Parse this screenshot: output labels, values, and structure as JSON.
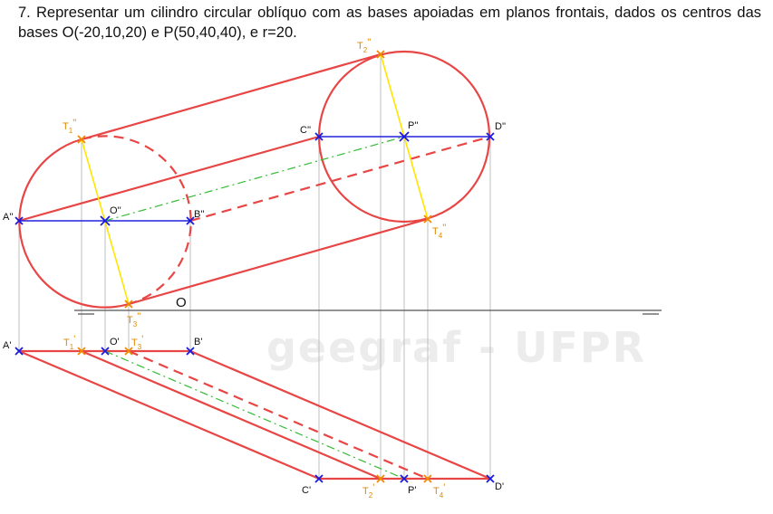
{
  "exercise": {
    "statement": "7. Representar um cilindro circular oblíquo com as bases apoiadas em planos frontais, dados os centros das bases O(-20,10,20) e P(50,40,40), e r=20."
  },
  "watermark": {
    "text": "geegraf - UFPR"
  },
  "colors": {
    "contour": "#e84545",
    "axis": "#2222dd",
    "tangency": "#ffe600",
    "axis_line": "#33bb33",
    "reference": "#bfbfbf",
    "ground_line": "#555555",
    "point_blue": "#1a1adb",
    "point_orange": "#f08a00"
  },
  "labels": {
    "origin": "O",
    "A2": "A''",
    "B2": "B''",
    "O2": "O''",
    "C2": "C''",
    "P2": "P''",
    "D2": "D''",
    "T1_2": "T",
    "T1_2_sub": "1",
    "T1_2_sup": "''",
    "T2_2": "T",
    "T2_2_sub": "2",
    "T2_2_sup": "''",
    "T3_2": "T",
    "T3_2_sub": "3",
    "T3_2_sup": "''",
    "T4_2": "T",
    "T4_2_sub": "4",
    "T4_2_sup": "''",
    "A1": "A'",
    "O1": "O'",
    "B1": "B'",
    "C1": "C'",
    "P1": "P'",
    "D1": "D'",
    "T1_1": "T",
    "T1_1_sub": "1",
    "T1_1_sup": "'",
    "T3_1": "T",
    "T3_1_sub": "3",
    "T3_1_sup": "'",
    "T2_1": "T",
    "T2_1_sub": "2",
    "T2_1_sup": "'",
    "T4_1": "T",
    "T4_1_sub": "4",
    "T4_1_sup": "'"
  }
}
